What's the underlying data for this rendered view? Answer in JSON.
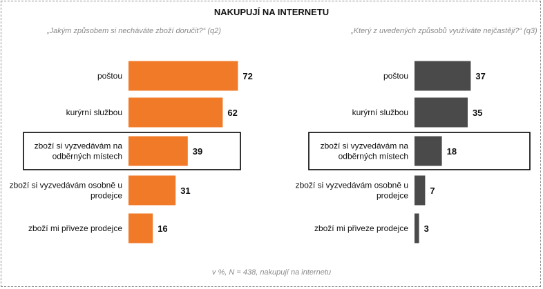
{
  "title": "NAKUPUJÍ NA INTERNETU",
  "footnote": "v %, N = 438, nakupují na internetu",
  "colors": {
    "left": "#f07a28",
    "right": "#4a4a4a"
  },
  "chart_data": [
    {
      "type": "bar",
      "orientation": "horizontal",
      "question": "„Jakým způsobem si necháváte zboží doručit?“ (q2)",
      "categories": [
        "poštou",
        "kurýrní službou",
        "zboží si vyzvedávám na odběrných místech",
        "zboží si vyzvedávám osobně u prodejce",
        "zboží mi přiveze prodejce"
      ],
      "category_lines": [
        [
          "poštou"
        ],
        [
          "kurýrní službou"
        ],
        [
          "zboží si vyzvedávám na",
          "odběrných místech"
        ],
        [
          "zboží si vyzvedávám osobně u",
          "prodejce"
        ],
        [
          "zboží mi přiveze prodejce"
        ]
      ],
      "values": [
        72,
        62,
        39,
        31,
        16
      ],
      "highlighted_category": "zboží si vyzvedávám na odběrných místech",
      "unit": "%"
    },
    {
      "type": "bar",
      "orientation": "horizontal",
      "question": "„Který z uvedených způsobů využíváte nejčastěji?“ (q3)",
      "categories": [
        "poštou",
        "kurýrní službou",
        "zboží si vyzvedávám na odběrných místech",
        "zboží si vyzvedávám osobně u prodejce",
        "zboží mi přiveze prodejce"
      ],
      "category_lines": [
        [
          "poštou"
        ],
        [
          "kurýrní službou"
        ],
        [
          "zboží si vyzvedávám na",
          "odběrných místech"
        ],
        [
          "zboží si vyzvedávám osobně u",
          "prodejce"
        ],
        [
          "zboží mi přiveze prodejce"
        ]
      ],
      "values": [
        37,
        35,
        18,
        7,
        3
      ],
      "highlighted_category": "zboží si vyzvedávám na odběrných místech",
      "unit": "%"
    }
  ]
}
